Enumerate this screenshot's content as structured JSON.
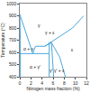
{
  "chart_data": {
    "type": "line",
    "xlabel": "Nitrogen mass fraction (%)",
    "ylabel": "Temperature (°C)",
    "color": "#4aa8dc",
    "xlim": [
      0,
      12
    ],
    "xticks": [
      0,
      2,
      4,
      6,
      8,
      10,
      12
    ],
    "ylim": [
      400,
      1000
    ],
    "yticks": [
      400,
      500,
      600,
      700,
      800,
      900,
      1000
    ],
    "grid": false,
    "series": [
      {
        "x": [
          0,
          0.1,
          0.1
        ],
        "values": [
          912,
          700,
          400
        ]
      },
      {
        "x": [
          0,
          1.5,
          2.35
        ],
        "values": [
          912,
          700,
          590
        ]
      },
      {
        "x": [
          0.1,
          5.3
        ],
        "values": [
          590,
          590
        ]
      },
      {
        "x": [
          2.35,
          2.8,
          4.5
        ],
        "values": [
          590,
          650,
          650
        ]
      },
      {
        "x": [
          5.3,
          5.3,
          5.7,
          6.1
        ],
        "values": [
          400,
          680,
          680,
          400
        ]
      },
      {
        "x": [
          4.5,
          5.7
        ],
        "values": [
          650,
          680
        ]
      },
      {
        "x": [
          5.7,
          7.2,
          8.2
        ],
        "values": [
          680,
          560,
          400
        ]
      },
      {
        "x": [
          4.5,
          6.8,
          9.5,
          11.5
        ],
        "values": [
          650,
          720,
          800,
          900
        ]
      }
    ],
    "annotations": [
      {
        "text": "γ",
        "x": 3.5,
        "y": 820
      },
      {
        "text": "ε",
        "x": 9.5,
        "y": 620
      },
      {
        "text": "γ + ε",
        "x": 5.5,
        "y": 760
      },
      {
        "text": "α + γ",
        "x": 1.6,
        "y": 630
      },
      {
        "text": "α + γ'",
        "x": 2.7,
        "y": 480
      },
      {
        "text": "γ'",
        "x": 5.7,
        "y": 450
      },
      {
        "text": "γ' + ε",
        "x": 7.2,
        "y": 450
      }
    ]
  }
}
